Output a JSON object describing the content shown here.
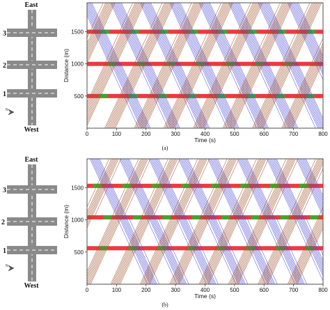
{
  "colors": {
    "road": "#8a8a8a",
    "lane_mark": "#ffffff",
    "trajectory_eastbound": "#a0522d",
    "trajectory_westbound": "#4b4bd6",
    "signal_red": "#e8262b",
    "signal_green": "#2bb52b"
  },
  "panels": [
    {
      "id": "a",
      "label": "(a)",
      "map": {
        "north_label": "East",
        "south_label": "West",
        "intersection_labels": [
          "3",
          "2",
          "1"
        ],
        "compass_icon": "north-arrow-icon"
      }
    },
    {
      "id": "b",
      "label": "(b)",
      "map": {
        "north_label": "East",
        "south_label": "West",
        "intersection_labels": [
          "3",
          "2",
          "1"
        ],
        "compass_icon": "north-arrow-icon"
      }
    }
  ],
  "chart_data": [
    {
      "type": "line",
      "panel": "a",
      "xlabel": "Time (s)",
      "ylabel": "Distance (m)",
      "xlim": [
        0,
        800
      ],
      "ylim": [
        0,
        1950
      ],
      "xticks": [
        0,
        100,
        200,
        300,
        400,
        500,
        600,
        700,
        800
      ],
      "yticks": [
        500,
        1000,
        1500
      ],
      "grid": false,
      "signal_bars": [
        {
          "distance": 500,
          "cycle": 100,
          "green_starts": [
            40,
            140,
            240,
            340,
            440,
            540,
            640,
            740
          ],
          "green_duration": 30
        },
        {
          "distance": 1000,
          "cycle": 100,
          "green_starts": [
            70,
            170,
            270,
            370,
            470,
            570,
            670
          ],
          "green_duration": 30
        },
        {
          "distance": 1500,
          "cycle": 100,
          "green_starts": [
            45,
            145,
            245,
            345,
            445,
            545,
            645,
            745
          ],
          "green_duration": 30
        }
      ],
      "series": [
        {
          "direction": "westbound",
          "slope_m_per_s": -10,
          "headway_s": 4,
          "platoons": [
            {
              "start": -20,
              "count": 10
            },
            {
              "start": 80,
              "count": 10
            },
            {
              "start": 180,
              "count": 10
            },
            {
              "start": 280,
              "count": 10
            },
            {
              "start": 380,
              "count": 10
            },
            {
              "start": 480,
              "count": 10
            },
            {
              "start": 580,
              "count": 10
            },
            {
              "start": 680,
              "count": 10
            }
          ]
        },
        {
          "direction": "eastbound",
          "slope_m_per_s": 10,
          "headway_s": 4,
          "platoons": [
            {
              "start": -140,
              "count": 10
            },
            {
              "start": -40,
              "count": 10
            },
            {
              "start": 60,
              "count": 10
            },
            {
              "start": 160,
              "count": 10
            },
            {
              "start": 260,
              "count": 10
            },
            {
              "start": 360,
              "count": 10
            },
            {
              "start": 460,
              "count": 10
            },
            {
              "start": 560,
              "count": 10
            },
            {
              "start": 660,
              "count": 10
            }
          ]
        }
      ]
    },
    {
      "type": "line",
      "panel": "b",
      "xlabel": "Time (s)",
      "ylabel": "Distance (m)",
      "xlim": [
        0,
        800
      ],
      "ylim": [
        0,
        1950
      ],
      "xticks": [
        0,
        100,
        200,
        300,
        400,
        500,
        600,
        700,
        800
      ],
      "yticks": [
        500,
        1000,
        1500
      ],
      "grid": false,
      "signal_bars": [
        {
          "distance": 560,
          "cycle": 100,
          "green_starts": [
            40,
            140,
            240,
            340,
            440,
            540,
            640,
            740
          ],
          "green_duration": 30
        },
        {
          "distance": 1040,
          "cycle": 100,
          "green_starts": [
            55,
            155,
            255,
            355,
            455,
            555,
            655,
            755
          ],
          "green_duration": 30
        },
        {
          "distance": 1530,
          "cycle": 100,
          "green_starts": [
            20,
            120,
            220,
            320,
            420,
            520,
            620,
            720
          ],
          "green_duration": 30
        }
      ],
      "series": [
        {
          "direction": "westbound",
          "slope_m_per_s": -10,
          "headway_s": 4,
          "platoons": [
            {
              "start": 10,
              "count": 9
            },
            {
              "start": 110,
              "count": 9
            },
            {
              "start": 210,
              "count": 9
            },
            {
              "start": 310,
              "count": 9
            },
            {
              "start": 410,
              "count": 9
            },
            {
              "start": 510,
              "count": 9
            },
            {
              "start": 610,
              "count": 9
            },
            {
              "start": 710,
              "count": 9
            }
          ]
        },
        {
          "direction": "eastbound",
          "slope_m_per_s": 10,
          "headway_s": 4,
          "platoons": [
            {
              "start": -120,
              "count": 9
            },
            {
              "start": -20,
              "count": 9
            },
            {
              "start": 80,
              "count": 9
            },
            {
              "start": 180,
              "count": 9
            },
            {
              "start": 280,
              "count": 9
            },
            {
              "start": 380,
              "count": 9
            },
            {
              "start": 480,
              "count": 9
            },
            {
              "start": 580,
              "count": 9
            },
            {
              "start": 680,
              "count": 9
            }
          ]
        }
      ]
    }
  ]
}
